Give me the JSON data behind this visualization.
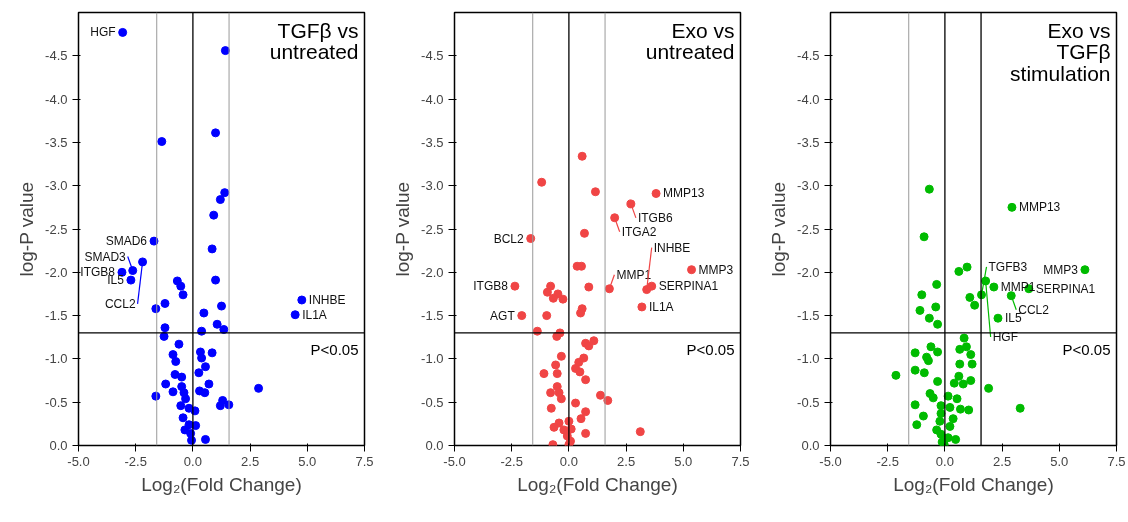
{
  "chart_data": [
    {
      "type": "scatter",
      "title": "TGFβ vs\nuntreated",
      "xlabel": "Log₂(Fold Change)",
      "ylabel": "log-P value",
      "marker": "circle",
      "xlim": [
        -5,
        7.5
      ],
      "ylim": [
        0,
        -5
      ],
      "xticks": [
        {
          "value": -5,
          "label": "-5.0"
        },
        {
          "value": -2.5,
          "label": "-2.5"
        },
        {
          "value": 0,
          "label": "0.0"
        },
        {
          "value": 2.5,
          "label": "2.5"
        },
        {
          "value": 5,
          "label": "5.0"
        },
        {
          "value": 7.5,
          "label": "7.5"
        }
      ],
      "yticks": [
        {
          "value": 0,
          "label": "0.0"
        },
        {
          "value": -0.5,
          "label": "-0.5"
        },
        {
          "value": -1,
          "label": "-1.0"
        },
        {
          "value": -1.5,
          "label": "-1.5"
        },
        {
          "value": -2,
          "label": "-2.0"
        },
        {
          "value": -2.5,
          "label": "-2.5"
        },
        {
          "value": -3,
          "label": "-3.0"
        },
        {
          "value": -3.5,
          "label": "-3.5"
        },
        {
          "value": -4,
          "label": "-4.0"
        },
        {
          "value": -4.5,
          "label": "-4.5"
        }
      ],
      "ref_lines": [
        {
          "axis": "x",
          "value": -1.58,
          "color": "#999999"
        },
        {
          "axis": "x",
          "value": 1.58,
          "color": "#999999"
        },
        {
          "axis": "x",
          "value": 0,
          "color": "#000000"
        },
        {
          "axis": "y",
          "value": -1.3,
          "color": "#000000"
        }
      ],
      "series": [
        {
          "color": "#0000ff",
          "x": [
            -3.07,
            1.42,
            -1.36,
            0.99,
            1.39,
            1.2,
            0.91,
            -1.7,
            0.84,
            -2.2,
            -2.63,
            -3.1,
            -2.71,
            0.99,
            -0.68,
            -0.53,
            -0.43,
            4.76,
            4.47,
            -1.22,
            -1.62,
            1.25,
            0.48,
            1.06,
            1.35,
            0.38,
            -1.22,
            -1.26,
            -0.61,
            -0.87,
            -0.75,
            0.33,
            0.84,
            0.38,
            0.55,
            0.26,
            -0.78,
            -0.49,
            0.7,
            -1.19,
            -0.49,
            2.87,
            -0.87,
            -0.39,
            0.29,
            0.52,
            -1.62,
            1.3,
            1.57,
            1.2,
            -0.32,
            -0.53,
            -0.17,
            0.09,
            -0.43,
            -0.17,
            0.12,
            -0.35,
            -0.1,
            0.55,
            -0.06
          ],
          "values": [
            -4.77,
            -4.56,
            -3.51,
            -3.61,
            -2.92,
            -2.84,
            -2.66,
            -2.36,
            -2.27,
            -2.12,
            -2.02,
            -2.0,
            -1.91,
            -1.91,
            -1.9,
            -1.84,
            -1.74,
            -1.68,
            -1.51,
            -1.64,
            -1.58,
            -1.61,
            -1.53,
            -1.4,
            -1.34,
            -1.32,
            -1.36,
            -1.26,
            -1.17,
            -1.05,
            -0.97,
            -1.08,
            -1.07,
            -1.01,
            -0.91,
            -0.84,
            -0.82,
            -0.79,
            -0.71,
            -0.71,
            -0.68,
            -0.66,
            -0.62,
            -0.61,
            -0.63,
            -0.61,
            -0.57,
            -0.52,
            -0.47,
            -0.46,
            -0.54,
            -0.46,
            -0.43,
            -0.4,
            -0.32,
            -0.24,
            -0.23,
            -0.18,
            -0.14,
            -0.07,
            -0.06
          ]
        }
      ],
      "annotations": [
        {
          "text": "HGF",
          "x": -3.07,
          "y": -4.77
        },
        {
          "text": "SMAD6",
          "x": -1.7,
          "y": -2.36
        },
        {
          "text": "SMAD3",
          "x": -2.63,
          "y": -2.02
        },
        {
          "text": "ITGB8",
          "x": -3.1,
          "y": -2.0
        },
        {
          "text": "CCL2",
          "x": -2.2,
          "y": -2.12
        },
        {
          "text": "IL5",
          "x": -2.71,
          "y": -1.91
        },
        {
          "text": "INHBE",
          "x": 4.76,
          "y": -1.68
        },
        {
          "text": "IL1A",
          "x": 4.47,
          "y": -1.51
        },
        "P<0.05"
      ]
    },
    {
      "type": "scatter",
      "title": "Exo vs\nuntreated",
      "xlabel": "Log₂(Fold Change)",
      "ylabel": "log-P value",
      "marker": "circle",
      "xlim": [
        -5,
        7.5
      ],
      "ylim": [
        0,
        -5
      ],
      "xticks": [
        {
          "value": -5,
          "label": "-5.0"
        },
        {
          "value": -2.5,
          "label": "-2.5"
        },
        {
          "value": 0,
          "label": "0.0"
        },
        {
          "value": 2.5,
          "label": "2.5"
        },
        {
          "value": 5,
          "label": "5.0"
        },
        {
          "value": 7.5,
          "label": "7.5"
        }
      ],
      "yticks": [
        {
          "value": 0,
          "label": "0.0"
        },
        {
          "value": -0.5,
          "label": "-0.5"
        },
        {
          "value": -1,
          "label": "-1.0"
        },
        {
          "value": -1.5,
          "label": "-1.5"
        },
        {
          "value": -2,
          "label": "-2.0"
        },
        {
          "value": -2.5,
          "label": "-2.5"
        },
        {
          "value": -3,
          "label": "-3.0"
        },
        {
          "value": -3.5,
          "label": "-3.5"
        },
        {
          "value": -4,
          "label": "-4.0"
        },
        {
          "value": -4.5,
          "label": "-4.5"
        }
      ],
      "ref_lines": [
        {
          "axis": "x",
          "value": -1.58,
          "color": "#999999"
        },
        {
          "axis": "x",
          "value": 1.58,
          "color": "#999999"
        },
        {
          "axis": "x",
          "value": 0,
          "color": "#000000"
        },
        {
          "axis": "y",
          "value": -1.3,
          "color": "#000000"
        }
      ],
      "series": [
        {
          "color": "#f04545",
          "x": [
            0.58,
            -1.19,
            1.16,
            3.81,
            2.71,
            2.0,
            0.68,
            -1.67,
            0.36,
            0.55,
            5.36,
            -2.36,
            3.62,
            3.4,
            1.77,
            0.87,
            -0.8,
            -0.94,
            -0.48,
            -0.68,
            -0.26,
            0.58,
            0.51,
            3.19,
            -2.06,
            -0.97,
            -1.38,
            -0.39,
            -0.53,
            1.09,
            0.73,
            0.87,
            -0.33,
            0.65,
            0.43,
            -0.58,
            0.29,
            0.48,
            -1.09,
            -0.51,
            0.73,
            -0.51,
            -0.8,
            -0.43,
            1.38,
            1.7,
            -0.33,
            0.29,
            -0.77,
            0.73,
            0.53,
            0,
            -0.43,
            -0.65,
            0.1,
            -0.22,
            0.73,
            3.12,
            -0.07,
            0.07,
            -0.7,
            0
          ],
          "values": [
            -3.34,
            -3.04,
            -2.93,
            -2.91,
            -2.79,
            -2.63,
            -2.45,
            -2.39,
            -2.07,
            -2.07,
            -2.03,
            -1.84,
            -1.84,
            -1.8,
            -1.81,
            -1.83,
            -1.84,
            -1.77,
            -1.75,
            -1.7,
            -1.69,
            -1.58,
            -1.53,
            -1.6,
            -1.5,
            -1.5,
            -1.32,
            -1.3,
            -1.26,
            -1.21,
            -1.18,
            -1.15,
            -1.03,
            -1.01,
            -0.96,
            -0.93,
            -0.89,
            -0.85,
            -0.83,
            -0.83,
            -0.76,
            -0.68,
            -0.61,
            -0.61,
            -0.58,
            -0.52,
            -0.54,
            -0.49,
            -0.43,
            -0.39,
            -0.31,
            -0.28,
            -0.26,
            -0.21,
            -0.19,
            -0.18,
            -0.14,
            -0.16,
            -0.11,
            -0.05,
            -0.01,
            -0.01
          ]
        }
      ],
      "annotations": [
        {
          "text": "ITGB6",
          "x": 2.71,
          "y": -2.79
        },
        {
          "text": "MMP13",
          "x": 3.81,
          "y": -2.91
        },
        {
          "text": "ITGA2",
          "x": 2.0,
          "y": -2.63
        },
        {
          "text": "BCL2",
          "x": -1.67,
          "y": -2.39
        },
        {
          "text": "SERPINA1",
          "x": 3.62,
          "y": -1.84
        },
        {
          "text": "ITGB8",
          "x": -2.36,
          "y": -1.84
        },
        {
          "text": "MMP1",
          "x": 1.77,
          "y": -1.81
        },
        {
          "text": "MMP3",
          "x": 5.36,
          "y": -2.03
        },
        {
          "text": "AGT",
          "x": -2.06,
          "y": -1.5
        },
        {
          "text": "IL1A",
          "x": 3.19,
          "y": -1.6
        },
        {
          "text": "INHBE",
          "x": 3.4,
          "y": -1.8
        },
        "P<0.05"
      ]
    },
    {
      "type": "scatter",
      "title": "Exo vs\nTGFβ\nstimulation",
      "xlabel": "Log₂(Fold Change)",
      "ylabel": "log-P value",
      "marker": "circle",
      "xlim": [
        -5,
        7.5
      ],
      "ylim": [
        0,
        -5
      ],
      "xticks": [
        {
          "value": -5,
          "label": "-5.0"
        },
        {
          "value": -2.5,
          "label": "-2.5"
        },
        {
          "value": 0,
          "label": "0.0"
        },
        {
          "value": 2.5,
          "label": "2.5"
        },
        {
          "value": 5,
          "label": "5.0"
        },
        {
          "value": 7.5,
          "label": "7.5"
        }
      ],
      "yticks": [
        {
          "value": 0,
          "label": "0.0"
        },
        {
          "value": -0.5,
          "label": "-0.5"
        },
        {
          "value": -1,
          "label": "-1.0"
        },
        {
          "value": -1.5,
          "label": "-1.5"
        },
        {
          "value": -2,
          "label": "-2.0"
        },
        {
          "value": -2.5,
          "label": "-2.5"
        },
        {
          "value": -3,
          "label": "-3.0"
        },
        {
          "value": -3.5,
          "label": "-3.5"
        },
        {
          "value": -4,
          "label": "-4.0"
        },
        {
          "value": -4.5,
          "label": "-4.5"
        }
      ],
      "ref_lines": [
        {
          "axis": "x",
          "value": -1.58,
          "color": "#999999"
        },
        {
          "axis": "x",
          "value": 1.58,
          "color": "#000000"
        },
        {
          "axis": "x",
          "value": 0,
          "color": "#000000"
        },
        {
          "axis": "y",
          "value": -1.3,
          "color": "#000000"
        }
      ],
      "series": [
        {
          "color": "#00bb00",
          "x": [
            -0.68,
            2.93,
            -0.91,
            0.61,
            0.97,
            6.12,
            -0.36,
            1.78,
            2.14,
            3.67,
            1.6,
            -1.01,
            2.9,
            1.09,
            1.3,
            -1.09,
            -0.4,
            -0.68,
            2.32,
            -0.32,
            0.84,
            0.94,
            0.65,
            -0.61,
            -0.32,
            -1.3,
            -0.8,
            1.13,
            -0.72,
            0.65,
            1.19,
            -1.3,
            -0.9,
            -2.14,
            0.61,
            -0.32,
            0.41,
            0.8,
            1.13,
            1.91,
            -0.65,
            0.14,
            -0.51,
            0.53,
            -1.3,
            -0.17,
            0.22,
            0.68,
            1.04,
            3.29,
            -0.17,
            -0.94,
            0.36,
            -1.23,
            -0.22,
            0.22,
            -0.36,
            -0.17,
            0.14,
            0.47,
            -0.12,
            -0.03
          ],
          "values": [
            -2.96,
            -2.75,
            -2.41,
            -2.01,
            -2.06,
            -2.03,
            -1.86,
            -1.9,
            -1.83,
            -1.81,
            -1.74,
            -1.74,
            -1.73,
            -1.71,
            -1.62,
            -1.56,
            -1.6,
            -1.47,
            -1.47,
            -1.4,
            -1.24,
            -1.14,
            -1.11,
            -1.14,
            -1.08,
            -1.07,
            -1.02,
            -1.05,
            -0.98,
            -0.94,
            -0.94,
            -0.87,
            -0.84,
            -0.81,
            -0.8,
            -0.74,
            -0.72,
            -0.71,
            -0.75,
            -0.66,
            -0.6,
            -0.57,
            -0.55,
            -0.54,
            -0.47,
            -0.46,
            -0.44,
            -0.42,
            -0.41,
            -0.43,
            -0.37,
            -0.34,
            -0.31,
            -0.24,
            -0.28,
            -0.22,
            -0.18,
            -0.13,
            -0.09,
            -0.07,
            -0.04,
            -0.01
          ]
        }
      ],
      "annotations": [
        {
          "text": "TGFB3",
          "x": 1.6,
          "y": -1.74
        },
        {
          "text": "MMP13",
          "x": 2.93,
          "y": -2.75
        },
        {
          "text": "HGF",
          "x": 1.78,
          "y": -1.9
        },
        {
          "text": "MMP1",
          "x": 2.14,
          "y": -1.83
        },
        {
          "text": "MMP3",
          "x": 6.12,
          "y": -2.03
        },
        {
          "text": "SERPINA1",
          "x": 3.67,
          "y": -1.81
        },
        {
          "text": "CCL2",
          "x": 2.9,
          "y": -1.73
        },
        {
          "text": "IL5",
          "x": 2.32,
          "y": -1.47
        },
        "P<0.05"
      ]
    }
  ]
}
